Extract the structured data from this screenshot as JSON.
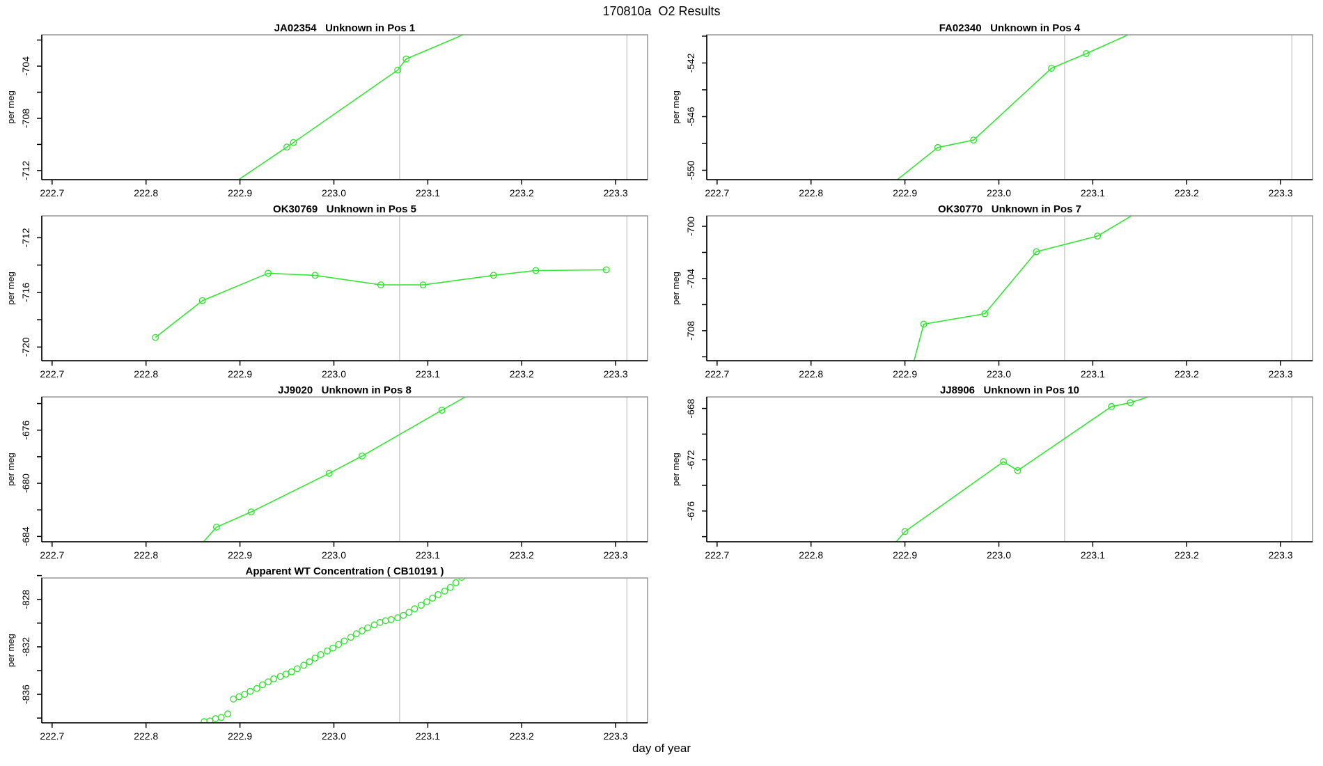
{
  "title": "170810a  O2 Results",
  "xlabel": "day of year",
  "ylabel": "per meg",
  "colors": {
    "series": "#33e633",
    "ref_line": "#cccccc",
    "box": "#9c9c9c",
    "axis": "#000000",
    "text": "#000000"
  },
  "x_axis": {
    "range": [
      222.689,
      223.334
    ],
    "ticks": [
      222.7,
      222.8,
      222.9,
      223.0,
      223.1,
      223.2,
      223.3
    ],
    "tick_labels": [
      "222.7",
      "222.8",
      "222.9",
      "223.0",
      "223.1",
      "223.2",
      "223.3"
    ]
  },
  "ref_lines": [
    223.07,
    223.312
  ],
  "chart_data": [
    {
      "id": "JA02354",
      "title": "JA02354   Unknown in Pos 1",
      "row": 0,
      "col": 0,
      "type": "line-points",
      "ylim": [
        -712.7,
        -701.6
      ],
      "y_ticks": [
        [
          -702,
          ""
        ],
        [
          -704,
          "-704"
        ],
        [
          -706,
          ""
        ],
        [
          -708,
          "-708"
        ],
        [
          -710,
          ""
        ],
        [
          -712,
          "-712"
        ]
      ],
      "points": [
        [
          222.88,
          -713.6
        ],
        [
          222.95,
          -710.2
        ],
        [
          222.957,
          -709.85
        ],
        [
          223.068,
          -704.3
        ],
        [
          223.077,
          -703.45
        ],
        [
          223.19,
          -700.0
        ]
      ]
    },
    {
      "id": "FA02340",
      "title": "FA02340   Unknown in Pos 4",
      "row": 0,
      "col": 1,
      "type": "line-points",
      "ylim": [
        -550.7,
        -539.9
      ],
      "y_ticks": [
        [
          -540,
          ""
        ],
        [
          -542,
          "-542"
        ],
        [
          -544,
          ""
        ],
        [
          -546,
          "-546"
        ],
        [
          -548,
          ""
        ],
        [
          -550,
          "-550"
        ]
      ],
      "points": [
        [
          222.865,
          -552.2
        ],
        [
          222.935,
          -548.3
        ],
        [
          222.973,
          -547.75
        ],
        [
          223.056,
          -542.4
        ],
        [
          223.093,
          -541.3
        ],
        [
          223.16,
          -539.2
        ]
      ]
    },
    {
      "id": "OK30769",
      "title": "OK30769   Unknown in Pos 5",
      "row": 1,
      "col": 0,
      "type": "line-points",
      "ylim": [
        -721.0,
        -710.4
      ],
      "y_ticks": [
        [
          -712,
          "-712"
        ],
        [
          -714,
          ""
        ],
        [
          -716,
          "-716"
        ],
        [
          -718,
          ""
        ],
        [
          -720,
          "-720"
        ]
      ],
      "points": [
        [
          222.81,
          -719.3
        ],
        [
          222.86,
          -716.6
        ],
        [
          222.93,
          -714.6
        ],
        [
          222.98,
          -714.75
        ],
        [
          223.05,
          -715.45
        ],
        [
          223.095,
          -715.45
        ],
        [
          223.17,
          -714.75
        ],
        [
          223.215,
          -714.4
        ],
        [
          223.29,
          -714.35
        ]
      ]
    },
    {
      "id": "OK30770",
      "title": "OK30770   Unknown in Pos 7",
      "row": 1,
      "col": 1,
      "type": "line-points",
      "ylim": [
        -710.3,
        -699.2
      ],
      "y_ticks": [
        [
          -700,
          "-700"
        ],
        [
          -702,
          ""
        ],
        [
          -704,
          "-704"
        ],
        [
          -706,
          ""
        ],
        [
          -708,
          "-708"
        ],
        [
          -710,
          ""
        ]
      ],
      "points": [
        [
          222.905,
          -711.6
        ],
        [
          222.92,
          -707.5
        ],
        [
          222.985,
          -706.7
        ],
        [
          223.04,
          -701.95
        ],
        [
          223.105,
          -700.75
        ],
        [
          223.16,
          -698.4
        ]
      ]
    },
    {
      "id": "JJ9020",
      "title": "JJ9020   Unknown in Pos 8",
      "row": 2,
      "col": 0,
      "type": "line-points",
      "ylim": [
        -684.4,
        -673.5
      ],
      "y_ticks": [
        [
          -674,
          ""
        ],
        [
          -676,
          "-676"
        ],
        [
          -678,
          ""
        ],
        [
          -680,
          "-680"
        ],
        [
          -682,
          ""
        ],
        [
          -684,
          "-684"
        ]
      ],
      "points": [
        [
          222.855,
          -684.9
        ],
        [
          222.875,
          -683.3
        ],
        [
          222.912,
          -682.15
        ],
        [
          222.995,
          -679.25
        ],
        [
          223.03,
          -677.95
        ],
        [
          223.115,
          -674.5
        ],
        [
          223.16,
          -672.7
        ]
      ]
    },
    {
      "id": "JJ8906",
      "title": "JJ8906   Unknown in Pos 10",
      "row": 2,
      "col": 1,
      "type": "line-points",
      "ylim": [
        -678.4,
        -667.1
      ],
      "y_ticks": [
        [
          -668,
          "-668"
        ],
        [
          -670,
          ""
        ],
        [
          -672,
          "-672"
        ],
        [
          -674,
          ""
        ],
        [
          -676,
          "-676"
        ],
        [
          -678,
          ""
        ]
      ],
      "points": [
        [
          222.885,
          -678.9
        ],
        [
          222.9,
          -677.6
        ],
        [
          223.005,
          -672.15
        ],
        [
          223.02,
          -672.85
        ],
        [
          223.12,
          -667.85
        ],
        [
          223.14,
          -667.55
        ],
        [
          223.21,
          -665.9
        ]
      ]
    },
    {
      "id": "CB10191",
      "title": "Apparent WT Concentration ( CB10191 )",
      "row": 3,
      "col": 0,
      "type": "points",
      "ylim": [
        -838.4,
        -826.2
      ],
      "y_ticks": [
        [
          -826,
          ""
        ],
        [
          -828,
          "-828"
        ],
        [
          -830,
          ""
        ],
        [
          -832,
          "-832"
        ],
        [
          -834,
          ""
        ],
        [
          -836,
          "-836"
        ],
        [
          -838,
          ""
        ]
      ],
      "points": [
        [
          222.862,
          -838.3
        ],
        [
          222.868,
          -838.25
        ],
        [
          222.874,
          -838.05
        ],
        [
          222.88,
          -837.95
        ],
        [
          222.887,
          -837.65
        ],
        [
          222.893,
          -836.4
        ],
        [
          222.899,
          -836.2
        ],
        [
          222.905,
          -836.0
        ],
        [
          222.911,
          -835.75
        ],
        [
          222.918,
          -835.5
        ],
        [
          222.924,
          -835.2
        ],
        [
          222.93,
          -834.95
        ],
        [
          222.936,
          -834.7
        ],
        [
          222.943,
          -834.5
        ],
        [
          222.949,
          -834.3
        ],
        [
          222.955,
          -834.1
        ],
        [
          222.961,
          -833.85
        ],
        [
          222.968,
          -833.55
        ],
        [
          222.974,
          -833.25
        ],
        [
          222.98,
          -832.95
        ],
        [
          222.986,
          -832.65
        ],
        [
          222.993,
          -832.35
        ],
        [
          222.999,
          -832.1
        ],
        [
          223.005,
          -831.8
        ],
        [
          223.011,
          -831.5
        ],
        [
          223.018,
          -831.2
        ],
        [
          223.024,
          -830.9
        ],
        [
          223.03,
          -830.65
        ],
        [
          223.036,
          -830.4
        ],
        [
          223.043,
          -830.15
        ],
        [
          223.049,
          -829.95
        ],
        [
          223.055,
          -829.8
        ],
        [
          223.061,
          -829.7
        ],
        [
          223.068,
          -829.55
        ],
        [
          223.074,
          -829.35
        ],
        [
          223.08,
          -829.1
        ],
        [
          223.086,
          -828.8
        ],
        [
          223.093,
          -828.5
        ],
        [
          223.099,
          -828.2
        ],
        [
          223.105,
          -827.9
        ],
        [
          223.111,
          -827.6
        ],
        [
          223.118,
          -827.3
        ],
        [
          223.124,
          -827.0
        ],
        [
          223.13,
          -826.6
        ],
        [
          223.136,
          -826.15
        ]
      ]
    }
  ]
}
